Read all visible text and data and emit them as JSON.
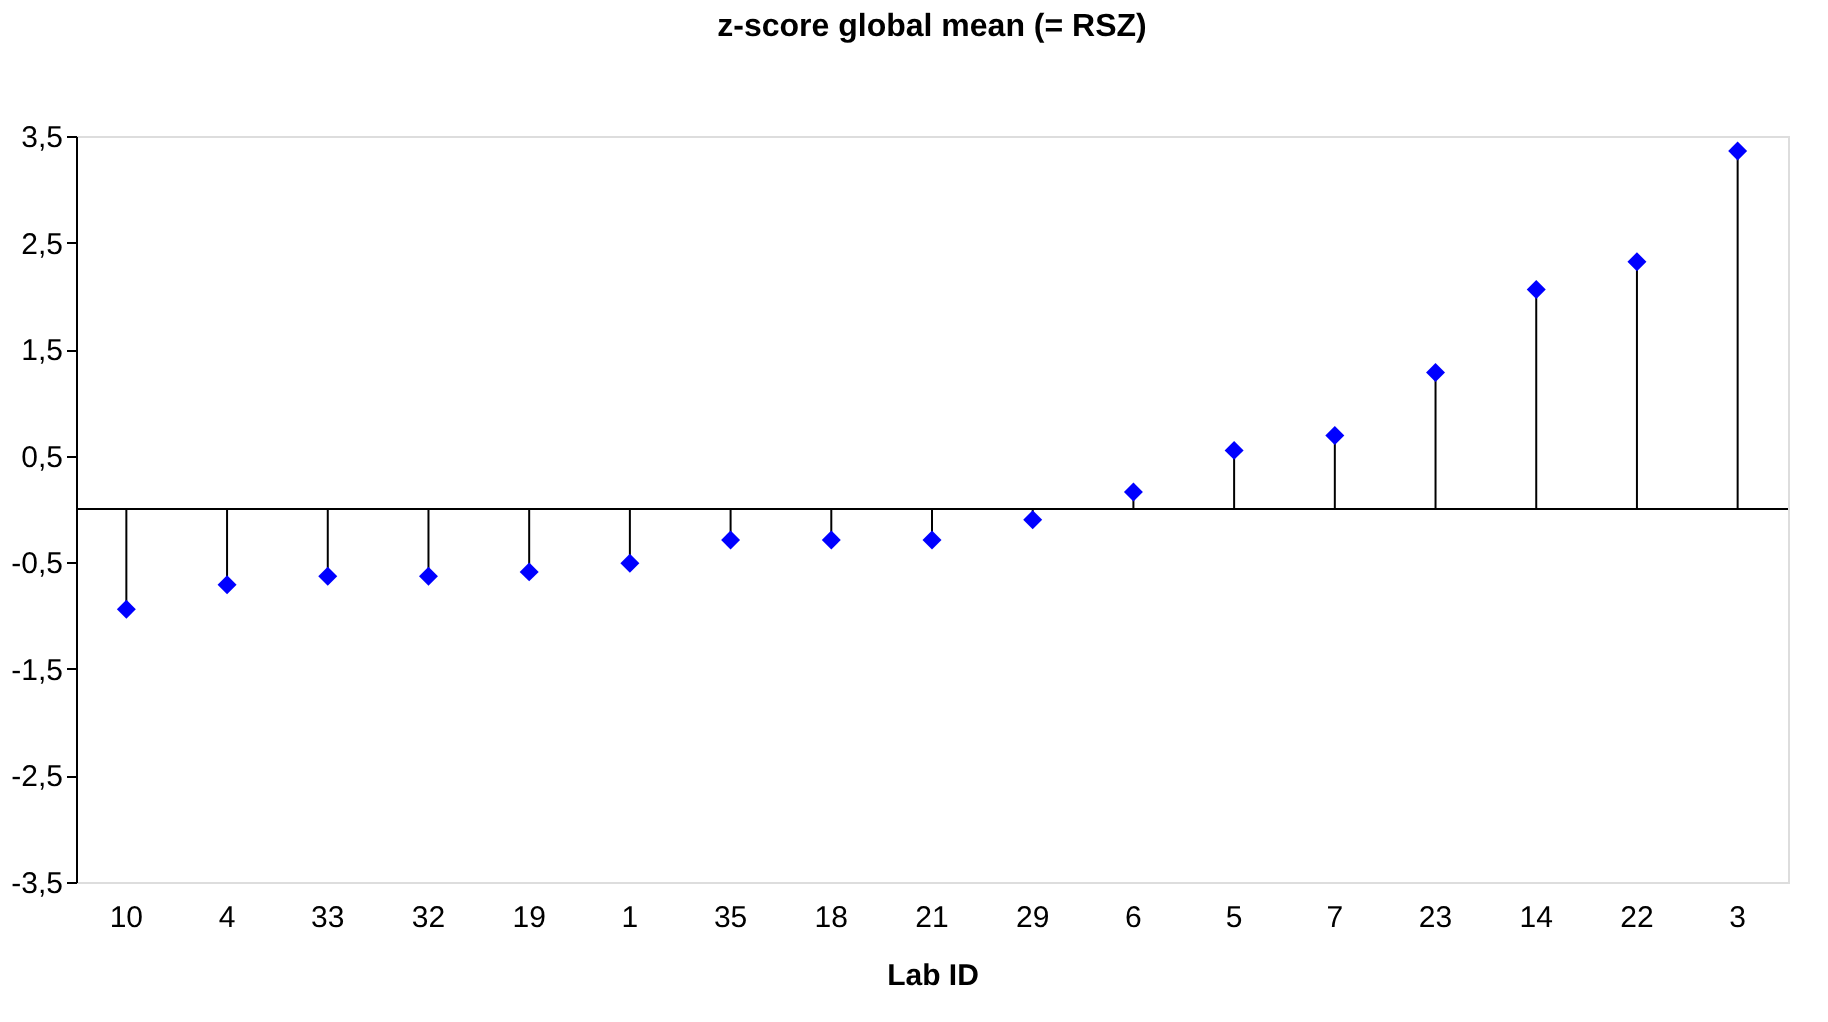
{
  "chart_data": {
    "type": "lollipop",
    "title": "z-score global mean (= RSZ)",
    "xlabel": "Lab ID",
    "categories": [
      "10",
      "4",
      "33",
      "32",
      "19",
      "1",
      "35",
      "18",
      "21",
      "29",
      "6",
      "5",
      "7",
      "23",
      "14",
      "22",
      "3"
    ],
    "series": [
      {
        "color": "#0000ff",
        "values": [
          -0.94,
          -0.71,
          -0.63,
          -0.63,
          -0.59,
          -0.51,
          -0.29,
          -0.29,
          -0.29,
          -0.1,
          0.16,
          0.55,
          0.69,
          1.28,
          2.06,
          2.32,
          3.36
        ]
      }
    ],
    "ylim": [
      -3.5,
      3.5
    ],
    "yticks": [
      {
        "value": -3.5,
        "label": "-3,5"
      },
      {
        "value": -2.5,
        "label": "-2,5"
      },
      {
        "value": -1.5,
        "label": "-1,5"
      },
      {
        "value": -0.5,
        "label": "-0,5"
      },
      {
        "value": 0.5,
        "label": "0,5"
      },
      {
        "value": 1.5,
        "label": "1,5"
      },
      {
        "value": 2.5,
        "label": "2,5"
      },
      {
        "value": 3.5,
        "label": "3,5"
      }
    ],
    "marker": "diamond",
    "grid": false
  }
}
